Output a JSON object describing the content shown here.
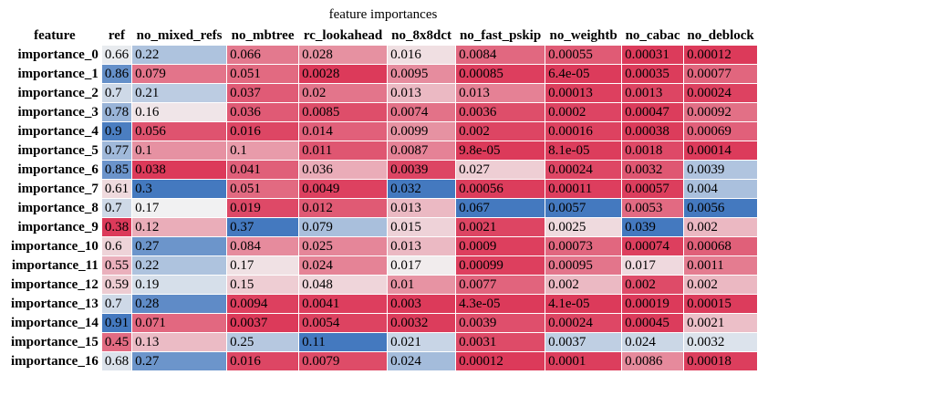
{
  "caption": "feature importances",
  "chart_data": {
    "type": "heatmap",
    "title": "feature importances",
    "index_header": "feature",
    "columns": [
      "ref",
      "no_mixed_refs",
      "no_mbtree",
      "rc_lookahead",
      "no_8x8dct",
      "no_fast_pskip",
      "no_weightb",
      "no_cabac",
      "no_deblock"
    ],
    "rows": [
      {
        "label": "importance_0",
        "cells": [
          "0.66",
          "0.22",
          "0.066",
          "0.028",
          "0.016",
          "0.0084",
          "0.00055",
          "0.00031",
          "0.00012"
        ]
      },
      {
        "label": "importance_1",
        "cells": [
          "0.86",
          "0.079",
          "0.051",
          "0.0028",
          "0.0095",
          "0.00085",
          "6.4e-05",
          "0.00035",
          "0.00077"
        ]
      },
      {
        "label": "importance_2",
        "cells": [
          "0.7",
          "0.21",
          "0.037",
          "0.02",
          "0.013",
          "0.013",
          "0.00013",
          "0.0013",
          "0.00024"
        ]
      },
      {
        "label": "importance_3",
        "cells": [
          "0.78",
          "0.16",
          "0.036",
          "0.0085",
          "0.0074",
          "0.0036",
          "0.0002",
          "0.00047",
          "0.00092"
        ]
      },
      {
        "label": "importance_4",
        "cells": [
          "0.9",
          "0.056",
          "0.016",
          "0.014",
          "0.0099",
          "0.002",
          "0.00016",
          "0.00038",
          "0.00069"
        ]
      },
      {
        "label": "importance_5",
        "cells": [
          "0.77",
          "0.1",
          "0.1",
          "0.011",
          "0.0087",
          "9.8e-05",
          "8.1e-05",
          "0.0018",
          "0.00014"
        ]
      },
      {
        "label": "importance_6",
        "cells": [
          "0.85",
          "0.038",
          "0.041",
          "0.036",
          "0.0039",
          "0.027",
          "0.00024",
          "0.0032",
          "0.0039"
        ]
      },
      {
        "label": "importance_7",
        "cells": [
          "0.61",
          "0.3",
          "0.051",
          "0.0049",
          "0.032",
          "0.00056",
          "0.00011",
          "0.00057",
          "0.004"
        ]
      },
      {
        "label": "importance_8",
        "cells": [
          "0.7",
          "0.17",
          "0.019",
          "0.012",
          "0.013",
          "0.067",
          "0.0057",
          "0.0053",
          "0.0056"
        ]
      },
      {
        "label": "importance_9",
        "cells": [
          "0.38",
          "0.12",
          "0.37",
          "0.079",
          "0.015",
          "0.0021",
          "0.0025",
          "0.039",
          "0.002"
        ]
      },
      {
        "label": "importance_10",
        "cells": [
          "0.6",
          "0.27",
          "0.084",
          "0.025",
          "0.013",
          "0.0009",
          "0.00073",
          "0.00074",
          "0.00068"
        ]
      },
      {
        "label": "importance_11",
        "cells": [
          "0.55",
          "0.22",
          "0.17",
          "0.024",
          "0.017",
          "0.00099",
          "0.00095",
          "0.017",
          "0.0011"
        ]
      },
      {
        "label": "importance_12",
        "cells": [
          "0.59",
          "0.19",
          "0.15",
          "0.048",
          "0.01",
          "0.0077",
          "0.002",
          "0.002",
          "0.002"
        ]
      },
      {
        "label": "importance_13",
        "cells": [
          "0.7",
          "0.28",
          "0.0094",
          "0.0041",
          "0.003",
          "4.3e-05",
          "4.1e-05",
          "0.00019",
          "0.00015"
        ]
      },
      {
        "label": "importance_14",
        "cells": [
          "0.91",
          "0.071",
          "0.0037",
          "0.0054",
          "0.0032",
          "0.0039",
          "0.00024",
          "0.00045",
          "0.0021"
        ]
      },
      {
        "label": "importance_15",
        "cells": [
          "0.45",
          "0.13",
          "0.25",
          "0.11",
          "0.021",
          "0.0031",
          "0.0037",
          "0.024",
          "0.0032"
        ]
      },
      {
        "label": "importance_16",
        "cells": [
          "0.68",
          "0.27",
          "0.016",
          "0.0079",
          "0.024",
          "0.00012",
          "0.0001",
          "0.0086",
          "0.00018"
        ]
      }
    ],
    "colormap": {
      "low": "#dc3a5a",
      "mid": "#f2f2f2",
      "high": "#4479bf"
    },
    "color_scale": "per-column"
  }
}
